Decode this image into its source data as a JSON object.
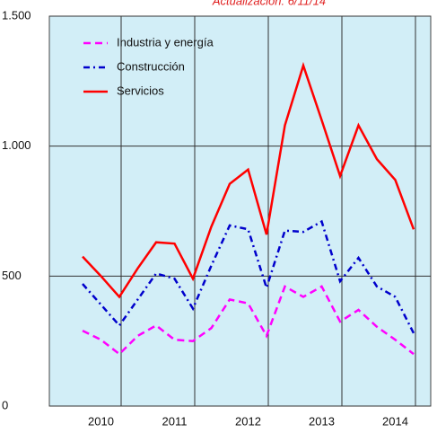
{
  "chart_data": {
    "type": "line",
    "title": "Actualización: 6/11/14",
    "categories": [
      null,
      "2010",
      null,
      null,
      null,
      "2011",
      null,
      null,
      null,
      "2012",
      null,
      null,
      null,
      "2013",
      null,
      null,
      null,
      "2014",
      null
    ],
    "series": [
      {
        "name": "Industria y energía",
        "color": "#ff00ff",
        "dash": "dash",
        "values": [
          290,
          255,
          200,
          270,
          310,
          255,
          250,
          300,
          410,
          395,
          270,
          460,
          420,
          460,
          325,
          370,
          305,
          255,
          200
        ]
      },
      {
        "name": "Construcción",
        "color": "#0000cc",
        "dash": "dashdot",
        "values": [
          470,
          390,
          310,
          410,
          510,
          490,
          375,
          540,
          695,
          680,
          455,
          675,
          670,
          710,
          480,
          570,
          460,
          420,
          280
        ]
      },
      {
        "name": "Servicios",
        "color": "#ff0000",
        "dash": "solid",
        "values": [
          575,
          500,
          420,
          530,
          630,
          625,
          490,
          690,
          855,
          910,
          660,
          1080,
          1310,
          1100,
          885,
          1080,
          950,
          870,
          680
        ]
      }
    ],
    "ylim": [
      0,
      1500
    ],
    "yticks": [
      0,
      500,
      {
        "value": 1000,
        "label": "1.000"
      },
      {
        "value": 1500,
        "label": "1.500"
      }
    ],
    "grid": true,
    "legend": "upper left"
  }
}
